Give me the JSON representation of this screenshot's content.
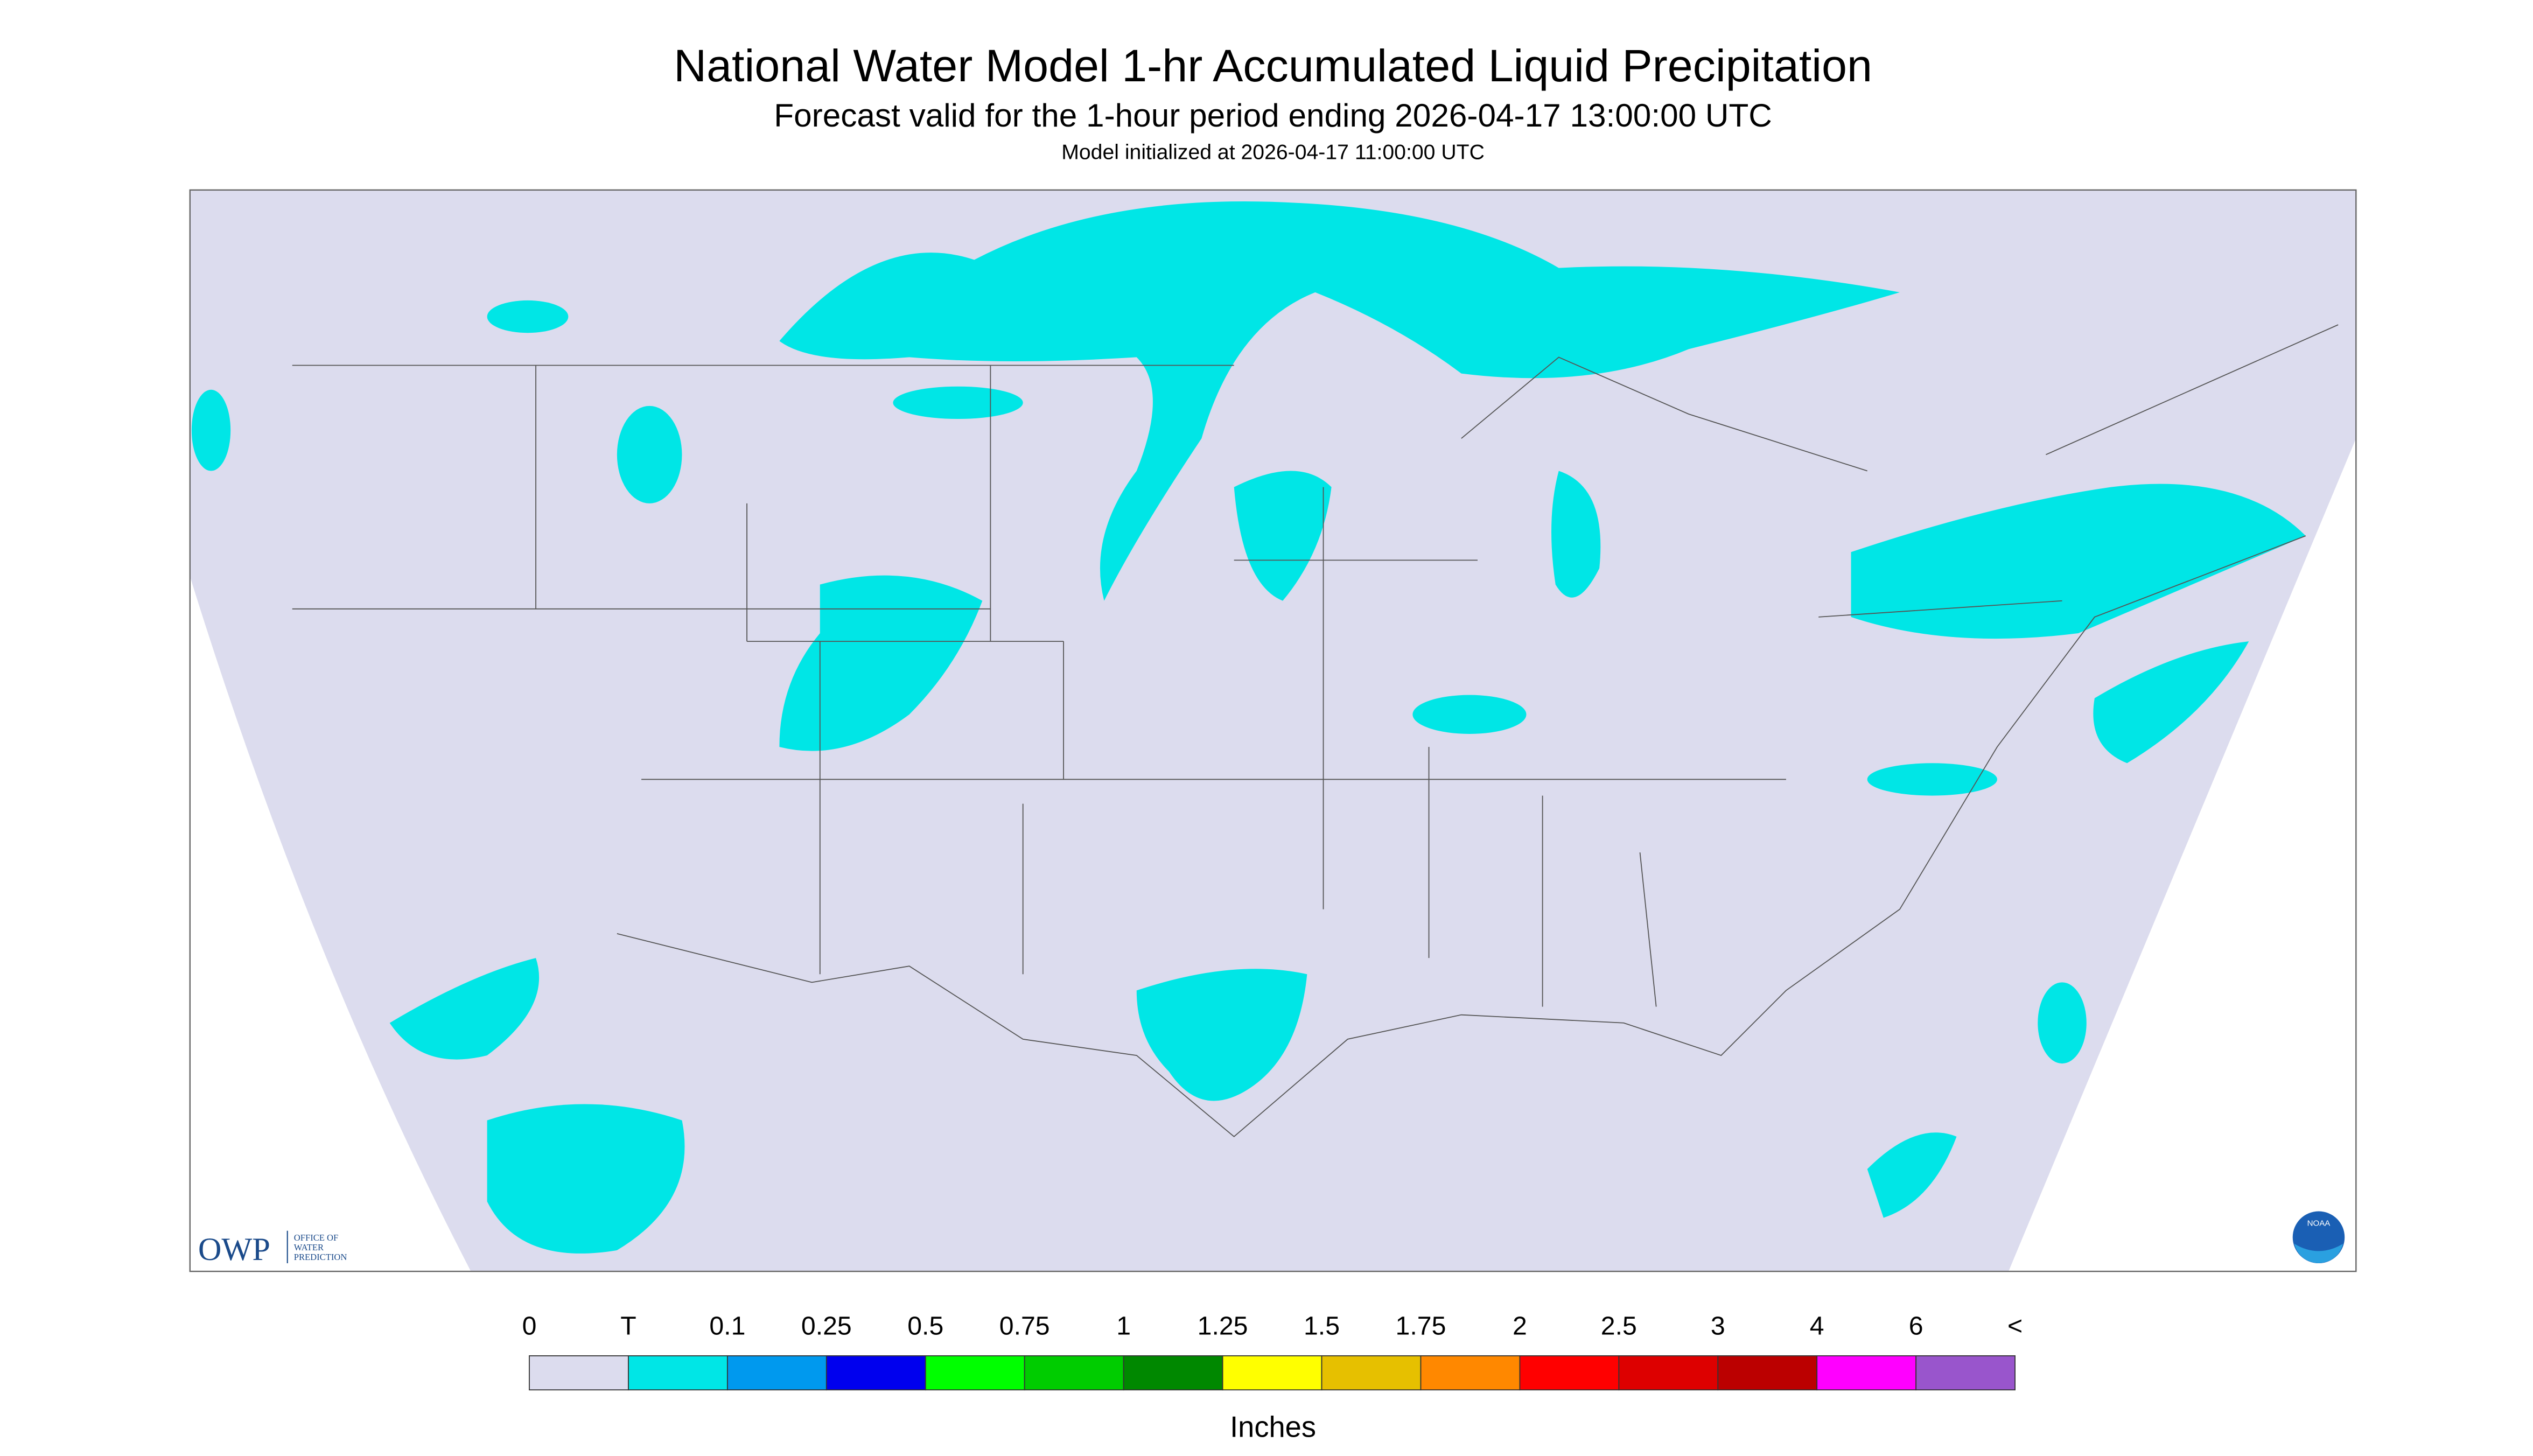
{
  "header": {
    "title": "National Water Model 1-hr Accumulated Liquid Precipitation",
    "subtitle": "Forecast valid for the 1-hour period ending 2026-04-17 13:00:00 UTC",
    "init": "Model initialized at 2026-04-17 11:00:00 UTC"
  },
  "legend": {
    "labels": [
      "0",
      "T",
      "0.1",
      "0.25",
      "0.5",
      "0.75",
      "1",
      "1.25",
      "1.5",
      "1.75",
      "2",
      "2.5",
      "3",
      "4",
      "6",
      "<"
    ],
    "colors": [
      "#dcdcee",
      "#00e6e6",
      "#0099ee",
      "#0000ee",
      "#00ff00",
      "#00cc00",
      "#008800",
      "#ffff00",
      "#e6c000",
      "#ff8800",
      "#ff0000",
      "#dd0000",
      "#bb0000",
      "#ff00ff",
      "#9955cc"
    ],
    "unit": "Inches"
  },
  "logo": {
    "text": "OWP",
    "org": [
      "OFFICE OF",
      "WATER",
      "PREDICTION"
    ]
  },
  "noaa": "NOAA"
}
